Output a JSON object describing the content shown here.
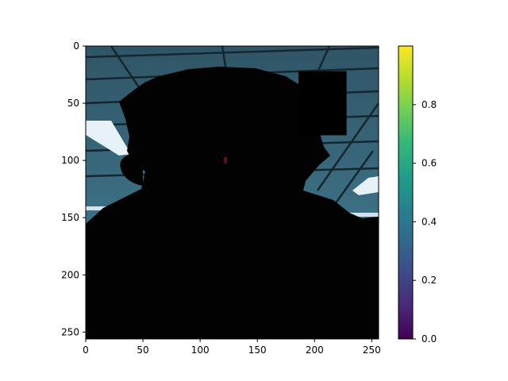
{
  "chart_data": {
    "type": "image",
    "title": "",
    "xlabel": "",
    "ylabel": "",
    "xlim": [
      0,
      256
    ],
    "ylim": [
      256,
      0
    ],
    "x_ticks": [
      0,
      50,
      100,
      150,
      200,
      250
    ],
    "y_ticks": [
      0,
      50,
      100,
      150,
      200,
      250
    ],
    "image_content": "dark silhouette of a person's head and shoulders in front of a lit office ceiling with fluorescent light panels; a black occluding rectangle near the top right",
    "occlusion_rect": {
      "x0": 186,
      "x1": 228,
      "y0": 22,
      "y1": 78
    },
    "colorbar": {
      "colormap": "viridis",
      "vmin": 0.0,
      "vmax": 1.0,
      "ticks": [
        0.0,
        0.2,
        0.4,
        0.6,
        0.8
      ],
      "tick_labels": [
        "0.0",
        "0.2",
        "0.4",
        "0.6",
        "0.8"
      ],
      "colors": [
        "#440154",
        "#482878",
        "#3e4989",
        "#31688e",
        "#26828e",
        "#1f9e89",
        "#35b779",
        "#6ece58",
        "#b5de2b",
        "#fde725"
      ]
    }
  }
}
